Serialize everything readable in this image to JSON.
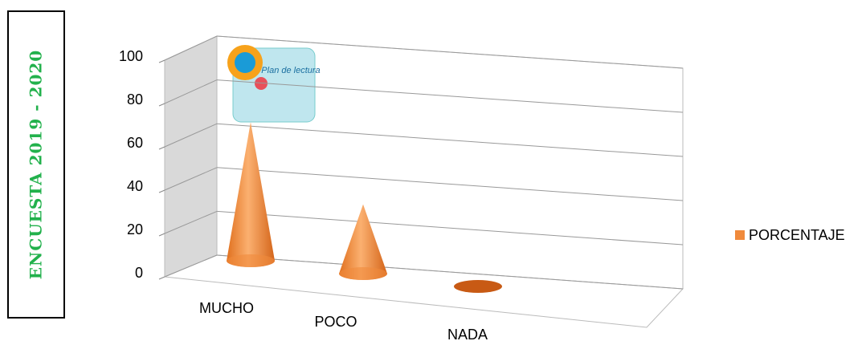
{
  "chart_data": {
    "type": "cone",
    "side_title": "ENCUESTA 2019 - 2020",
    "annotation": "Plan de lectura",
    "categories": [
      "MUCHO",
      "POCO",
      "NADA"
    ],
    "series": [
      {
        "name": "PORCENTAJE",
        "color": "#f08a3c",
        "values": [
          64,
          32,
          0
        ]
      }
    ],
    "ylim": [
      0,
      100
    ],
    "yticks": [
      0,
      20,
      40,
      60,
      80,
      100
    ],
    "grid": true,
    "legend": "right"
  }
}
